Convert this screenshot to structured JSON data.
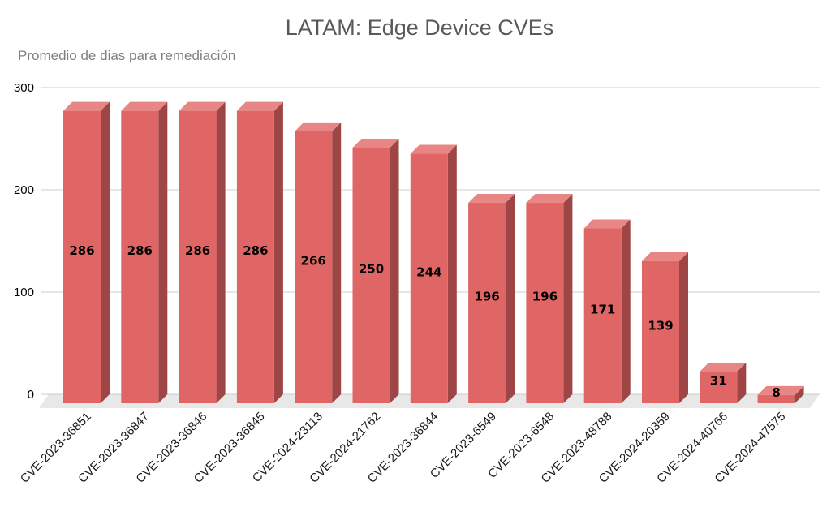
{
  "chart_data": {
    "type": "bar",
    "title": "LATAM: Edge Device CVEs",
    "subtitle": "Promedio de dias para remediación",
    "xlabel": "",
    "ylabel": "",
    "categories": [
      "CVE-2023-36851",
      "CVE-2023-36847",
      "CVE-2023-36846",
      "CVE-2023-36845",
      "CVE-2024-23113",
      "CVE-2024-21762",
      "CVE-2023-36844",
      "CVE-2023-6549",
      "CVE-2023-6548",
      "CVE-2023-48788",
      "CVE-2024-20359",
      "CVE-2024-40766",
      "CVE-2024-47575"
    ],
    "values": [
      286,
      286,
      286,
      286,
      266,
      250,
      244,
      196,
      196,
      171,
      139,
      31,
      8
    ],
    "ylim": [
      0,
      300
    ],
    "yticks": [
      0,
      100,
      200,
      300
    ],
    "grid": true,
    "legend": "none",
    "data_labels": true,
    "style": "3d",
    "colors": {
      "bar_front": "#e06666",
      "bar_top": "#e88585",
      "bar_side": "#9e4545",
      "grid": "#cccccc",
      "floor": "#e8e8e8"
    }
  }
}
